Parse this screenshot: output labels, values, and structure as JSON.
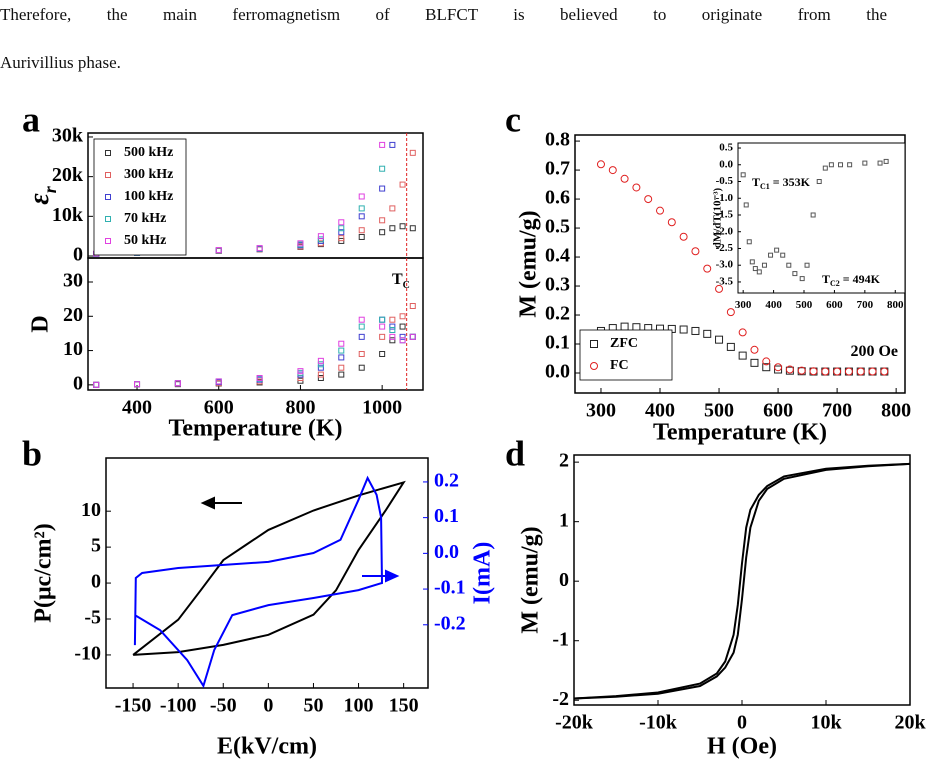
{
  "text": [
    "Therefore, the main ferromagnetism of BLFCT is believed to originate from the",
    "Aurivillius phase."
  ],
  "chart_data": [
    {
      "type": "scatter",
      "label": "a",
      "ylabel": [
        "ε",
        "r"
      ],
      "legend": "upper left",
      "xlim": [
        280,
        1100
      ],
      "ylim": [
        -500,
        31000
      ],
      "yticks": [
        0,
        {
          "value": 10000,
          "label": "10k"
        },
        {
          "value": 20000,
          "label": "20k"
        },
        {
          "value": 30000,
          "label": "30k"
        }
      ],
      "x": [
        300,
        400,
        500,
        600,
        700,
        800,
        850,
        900,
        950,
        1000,
        1025,
        1050,
        1075
      ],
      "series": [
        {
          "name": "500 kHz",
          "color": "#333333",
          "marker": "square",
          "values": [
            500,
            800,
            1000,
            1300,
            1700,
            2300,
            3000,
            3800,
            4800,
            6000,
            7000,
            7500,
            7000
          ]
        },
        {
          "name": "300 kHz",
          "color": "#e06060",
          "marker": "square",
          "values": [
            500,
            800,
            1000,
            1300,
            1700,
            2400,
            3200,
            4500,
            6500,
            9000,
            12000,
            18000,
            26000
          ]
        },
        {
          "name": "100 kHz",
          "color": "#4040d0",
          "marker": "square",
          "values": [
            500,
            800,
            1000,
            1400,
            1800,
            2700,
            3800,
            6000,
            10000,
            17000,
            28000,
            null,
            null
          ]
        },
        {
          "name": "70 kHz",
          "color": "#30b0b0",
          "marker": "square",
          "values": [
            500,
            800,
            1100,
            1400,
            1900,
            2900,
            4200,
            7000,
            12000,
            22000,
            null,
            null,
            null
          ]
        },
        {
          "name": "50 kHz",
          "color": "#e040e0",
          "marker": "square",
          "values": [
            600,
            900,
            1100,
            1500,
            2000,
            3200,
            5000,
            8500,
            15000,
            28000,
            null,
            null,
            null
          ]
        }
      ]
    },
    {
      "type": "scatter",
      "ylabel": "D",
      "xlabel": "Temperature (K)",
      "xlim": [
        280,
        1100
      ],
      "ylim": [
        -1.5,
        37
      ],
      "xticks": [
        400,
        600,
        800,
        1000
      ],
      "yticks": [
        0,
        10,
        20,
        30
      ],
      "vline": 1060,
      "annotations": [
        [
          "T",
          "C"
        ]
      ],
      "x": [
        300,
        400,
        500,
        600,
        700,
        800,
        850,
        900,
        950,
        1000,
        1025,
        1050,
        1075
      ],
      "series": [
        {
          "color": "#333333",
          "marker": "square",
          "values": [
            0,
            0.1,
            0.2,
            0.4,
            0.7,
            1.2,
            2,
            3,
            5,
            9,
            13,
            17,
            14
          ]
        },
        {
          "color": "#e06060",
          "marker": "square",
          "values": [
            0,
            0.1,
            0.3,
            0.5,
            1,
            2,
            3,
            5,
            9,
            14,
            19,
            20,
            23
          ]
        },
        {
          "color": "#4040d0",
          "marker": "square",
          "values": [
            0,
            0.2,
            0.4,
            0.8,
            1.5,
            3,
            5,
            8,
            14,
            19,
            17,
            14,
            14
          ]
        },
        {
          "color": "#30b0b0",
          "marker": "square",
          "values": [
            0,
            0.2,
            0.5,
            1,
            1.8,
            3.5,
            6,
            10,
            17,
            19,
            16,
            13,
            14
          ]
        },
        {
          "color": "#e040e0",
          "marker": "square",
          "values": [
            0,
            0.2,
            0.5,
            1,
            2,
            4,
            7,
            12,
            19,
            17,
            14,
            13,
            14
          ]
        }
      ]
    },
    {
      "type": "line",
      "label": "b",
      "ylabel": "P(μc/cm²)",
      "y2label": "I(mA)",
      "xlabel": "E(kV/cm)",
      "xlim": [
        -180,
        177
      ],
      "ylim": [
        -14.6,
        17.4
      ],
      "y2lim": [
        -0.377,
        0.267
      ],
      "xticks": [
        -150,
        -100,
        -50,
        0,
        50,
        100,
        150
      ],
      "yticks": [
        -10,
        -5,
        0,
        5,
        10
      ],
      "y2ticks": [
        -0.2,
        -0.1,
        {
          "value": 0,
          "label": "0.0"
        },
        0.1,
        0.2
      ],
      "series": [
        {
          "color": "#000000",
          "x": [
            -150,
            -100,
            -75,
            -50,
            -25,
            0,
            50,
            100,
            150,
            130,
            100,
            75,
            50,
            0,
            -50,
            -100,
            -150
          ],
          "values": [
            -10,
            -5.1,
            -1,
            3.2,
            5.3,
            7.4,
            10.1,
            12.2,
            14,
            10.1,
            4.6,
            -1,
            -4.4,
            -7.2,
            -8.6,
            -9.6,
            -10
          ]
        },
        {
          "color": "#0000ff",
          "axis": "y2",
          "x": [
            -148,
            -147,
            -140,
            -100,
            0,
            50,
            80,
            100,
            110,
            120,
            125,
            126,
            100,
            50,
            0,
            -40,
            -60,
            -72,
            -90,
            -120,
            -148
          ],
          "values": [
            -0.257,
            -0.069,
            -0.055,
            -0.041,
            -0.024,
            0.001,
            0.038,
            0.15,
            0.211,
            0.164,
            0.1,
            -0.083,
            -0.103,
            -0.125,
            -0.145,
            -0.173,
            -0.271,
            -0.371,
            -0.299,
            -0.215,
            -0.173
          ]
        }
      ]
    },
    {
      "type": "scatter",
      "label": "c",
      "ylabel": "M (emu/g)",
      "xlabel": "Temperature (K)",
      "legend": "lower left",
      "xlim": [
        256,
        815
      ],
      "ylim": [
        -0.069,
        0.821
      ],
      "xticks": [
        300,
        400,
        500,
        600,
        700,
        800
      ],
      "yticks": [
        {
          "value": 0,
          "label": "0.0"
        },
        0.1,
        0.2,
        0.3,
        0.4,
        0.5,
        0.6,
        0.7,
        0.8
      ],
      "annotations": [
        [
          "200 Oe"
        ]
      ],
      "series": [
        {
          "name": "ZFC",
          "color": "#222222",
          "marker": "square",
          "x": [
            300,
            320,
            340,
            360,
            380,
            400,
            420,
            440,
            460,
            480,
            500,
            520,
            540,
            560,
            580,
            600,
            620,
            640,
            660,
            680,
            700,
            720,
            740,
            760,
            780
          ],
          "values": [
            0.145,
            0.155,
            0.16,
            0.158,
            0.155,
            0.153,
            0.152,
            0.15,
            0.145,
            0.135,
            0.115,
            0.09,
            0.06,
            0.035,
            0.02,
            0.012,
            0.008,
            0.006,
            0.005,
            0.005,
            0.005,
            0.005,
            0.005,
            0.005,
            0.005
          ]
        },
        {
          "name": "FC",
          "color": "#e02020",
          "marker": "circle",
          "x": [
            300,
            320,
            340,
            360,
            380,
            400,
            420,
            440,
            460,
            480,
            500,
            520,
            540,
            560,
            580,
            600,
            620,
            640,
            660,
            680,
            700,
            720,
            740,
            760,
            780
          ],
          "values": [
            0.72,
            0.7,
            0.67,
            0.64,
            0.6,
            0.56,
            0.52,
            0.47,
            0.42,
            0.36,
            0.29,
            0.21,
            0.14,
            0.08,
            0.04,
            0.02,
            0.012,
            0.008,
            0.006,
            0.005,
            0.005,
            0.005,
            0.005,
            0.005,
            0.005
          ]
        }
      ]
    },
    {
      "type": "scatter",
      "ylabel": "dM/dT(10⁻³)",
      "xlim": [
        283,
        832
      ],
      "ylim": [
        -3.83,
        0.65
      ],
      "xticks": [
        300,
        400,
        500,
        600,
        700,
        800
      ],
      "yticks": [
        0.5,
        {
          "value": 0,
          "label": "0.0"
        },
        -0.5,
        {
          "value": -1,
          "label": "-1.0"
        },
        -1.5,
        {
          "value": -2,
          "label": "-2.0"
        },
        -2.5,
        {
          "value": -3,
          "label": "-3.0"
        },
        -3.5
      ],
      "annotations": [
        [
          "T",
          "C1",
          " = 353K"
        ],
        [
          "T",
          "C2",
          " = 494K"
        ]
      ],
      "series": [
        {
          "color": "#555555",
          "marker": "square",
          "x": [
            300,
            310,
            320,
            330,
            340,
            353,
            370,
            390,
            410,
            430,
            450,
            470,
            494,
            510,
            530,
            550,
            570,
            590,
            620,
            650,
            700,
            750,
            770
          ],
          "values": [
            -0.3,
            -1.2,
            -2.3,
            -2.9,
            -3.1,
            -3.2,
            -3.0,
            -2.7,
            -2.55,
            -2.7,
            -3.0,
            -3.25,
            -3.4,
            -3.0,
            -1.5,
            -0.5,
            -0.1,
            0.0,
            0.0,
            0.0,
            0.05,
            0.05,
            0.1
          ]
        }
      ]
    },
    {
      "type": "line",
      "label": "d",
      "ylabel": "M (emu/g)",
      "xlabel": "H (Oe)",
      "xlim": [
        -20000,
        20000
      ],
      "ylim": [
        -2.08,
        2.12
      ],
      "xticks": [
        {
          "value": -20000,
          "label": "-20k"
        },
        {
          "value": -10000,
          "label": "-10k"
        },
        0,
        {
          "value": 10000,
          "label": "10k"
        },
        {
          "value": 20000,
          "label": "20k"
        }
      ],
      "yticks": [
        -2,
        -1,
        0,
        1,
        2
      ],
      "series": [
        {
          "color": "#000000",
          "x": [
            -20000,
            -15000,
            -10000,
            -5000,
            -3000,
            -2000,
            -1000,
            -500,
            0,
            500,
            1000,
            2000,
            3000,
            5000,
            10000,
            15000,
            20000
          ],
          "values": [
            -1.97,
            -1.93,
            -1.87,
            -1.72,
            -1.55,
            -1.35,
            -0.9,
            -0.4,
            0.3,
            0.9,
            1.2,
            1.45,
            1.6,
            1.76,
            1.89,
            1.94,
            1.97
          ]
        },
        {
          "color": "#000000",
          "x": [
            -20000,
            -15000,
            -10000,
            -5000,
            -3000,
            -2000,
            -1000,
            -500,
            0,
            500,
            1000,
            2000,
            3000,
            5000,
            10000,
            15000,
            20000
          ],
          "values": [
            -1.97,
            -1.94,
            -1.89,
            -1.76,
            -1.6,
            -1.45,
            -1.2,
            -0.9,
            -0.3,
            0.4,
            0.9,
            1.35,
            1.55,
            1.72,
            1.87,
            1.93,
            1.97
          ]
        }
      ]
    }
  ]
}
